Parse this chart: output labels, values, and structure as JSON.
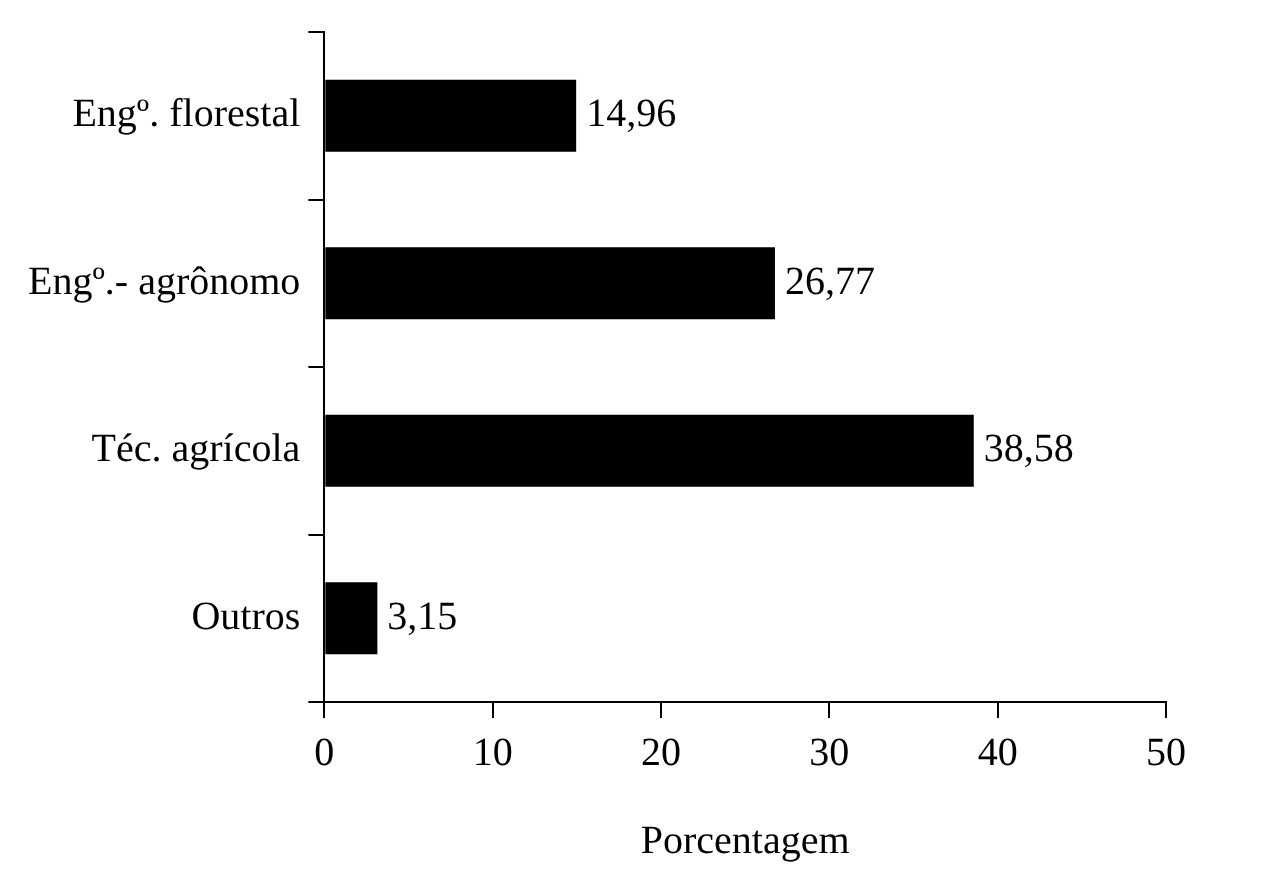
{
  "chart_data": {
    "type": "bar",
    "orientation": "horizontal",
    "xlabel": "Porcentagem",
    "categories": [
      "Engº. florestal",
      "Engº.- agrônomo",
      "Téc. agrícola",
      "Outros"
    ],
    "values": [
      14.96,
      26.77,
      38.58,
      3.15
    ],
    "color": "#000000",
    "value_labels": [
      "14,96",
      "26,77",
      "38,58",
      "3,15"
    ],
    "xlim": [
      0,
      50
    ],
    "xticks": [
      0,
      10,
      20,
      30,
      40,
      50
    ],
    "grid": false,
    "legend": false
  }
}
